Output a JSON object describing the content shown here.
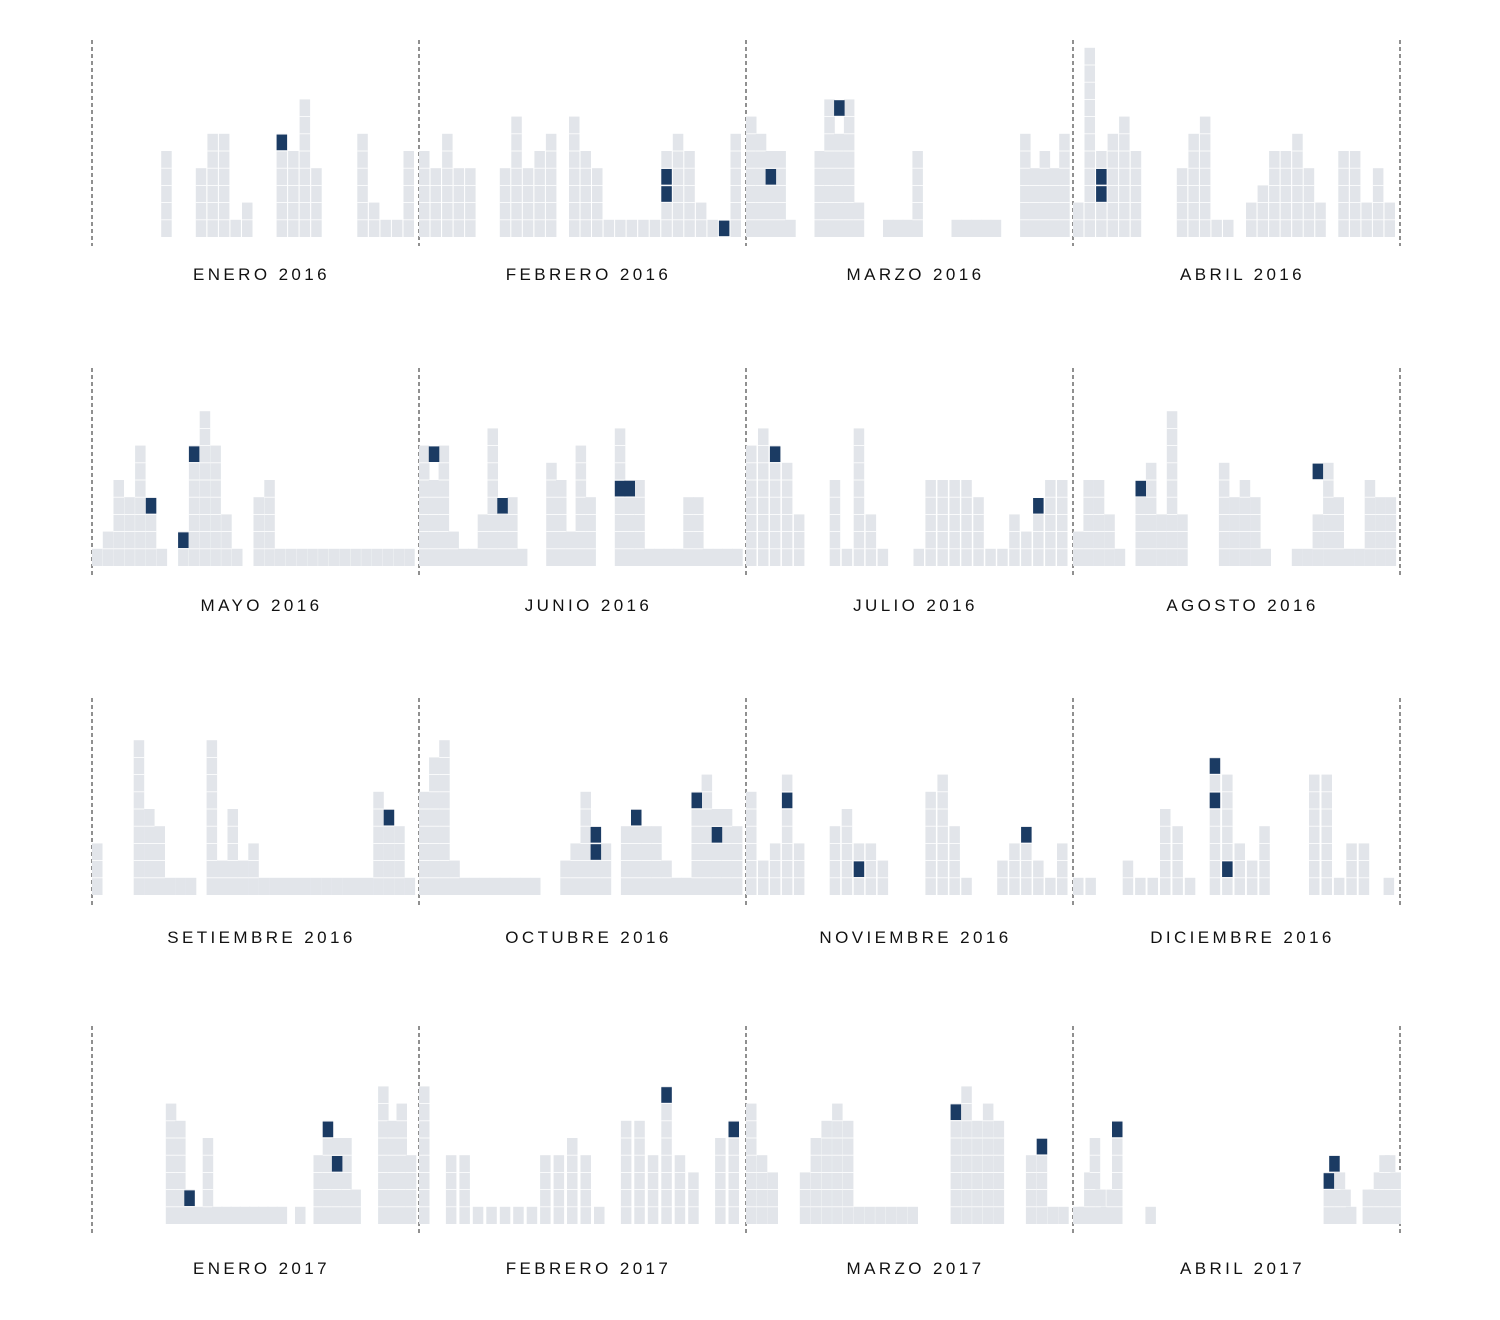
{
  "colors": {
    "bar": "#e2e5ea",
    "highlight": "#1b3b63",
    "divider": "#222222",
    "text": "#111111"
  },
  "chart_data": {
    "type": "bar",
    "title": "",
    "xlabel": "",
    "ylabel": "",
    "note": "Small-multiple daily column charts, one per month. Each column is a day, built from stacked unit cells; 'highlight' lists the unit-cell index (counted from the bottom, starting at 1) drawn in dark blue.",
    "ylim": [
      0,
      11
    ],
    "months": [
      {
        "label": "ENERO 2016",
        "values": [
          0,
          0,
          0,
          0,
          0,
          0,
          5,
          0,
          0,
          4,
          6,
          6,
          1,
          2,
          0,
          0,
          6,
          5,
          8,
          4,
          0,
          0,
          0,
          6,
          2,
          1,
          1,
          5
        ],
        "highlight": [
          [
            16,
            6
          ]
        ]
      },
      {
        "label": "FEBRERO 2016",
        "values": [
          5,
          4,
          6,
          4,
          4,
          0,
          0,
          4,
          7,
          4,
          5,
          6,
          0,
          7,
          5,
          4,
          1,
          1,
          1,
          1,
          1,
          5,
          6,
          5,
          2,
          1,
          0,
          6
        ],
        "highlight": [
          [
            21,
            3
          ],
          [
            21,
            4
          ],
          [
            26,
            1
          ]
        ]
      },
      {
        "label": "MARZO 2016",
        "values": [
          7,
          6,
          5,
          5,
          1,
          0,
          0,
          5,
          8,
          6,
          8,
          2,
          0,
          0,
          1,
          1,
          1,
          5,
          0,
          0,
          0,
          1,
          1,
          1,
          1,
          1,
          0,
          0,
          6,
          4,
          5,
          4,
          6
        ],
        "highlight": [
          [
            2,
            4
          ],
          [
            9,
            8
          ]
        ]
      },
      {
        "label": "ABRIL 2016",
        "values": [
          2,
          11,
          5,
          6,
          7,
          5,
          0,
          0,
          0,
          4,
          6,
          7,
          1,
          1,
          0,
          2,
          3,
          5,
          5,
          6,
          4,
          2,
          0,
          5,
          5,
          2,
          4,
          2
        ],
        "highlight": [
          [
            2,
            3
          ],
          [
            2,
            4
          ]
        ]
      },
      {
        "label": "MAYO 2016",
        "values": [
          1,
          2,
          5,
          4,
          7,
          4,
          1,
          0,
          2,
          7,
          9,
          7,
          3,
          1,
          0,
          4,
          5,
          1,
          1,
          1,
          1,
          1,
          1,
          1,
          1,
          1,
          1,
          1,
          1,
          1
        ],
        "highlight": [
          [
            5,
            4
          ],
          [
            8,
            2
          ],
          [
            9,
            7
          ]
        ]
      },
      {
        "label": "JUNIO 2016",
        "values": [
          7,
          5,
          7,
          2,
          1,
          1,
          3,
          8,
          3,
          4,
          1,
          0,
          0,
          6,
          5,
          2,
          7,
          4,
          0,
          0,
          8,
          5,
          5,
          1,
          1,
          1,
          1,
          4,
          4,
          1,
          1,
          1,
          1
        ],
        "highlight": [
          [
            1,
            7
          ],
          [
            8,
            4
          ],
          [
            20,
            5
          ],
          [
            21,
            5
          ]
        ]
      },
      {
        "label": "JULIO 2016",
        "values": [
          7,
          8,
          7,
          6,
          3,
          0,
          0,
          5,
          1,
          8,
          3,
          1,
          0,
          0,
          1,
          5,
          5,
          5,
          5,
          4,
          1,
          1,
          3,
          2,
          3,
          5,
          5
        ],
        "highlight": [
          [
            2,
            7
          ],
          [
            24,
            4
          ]
        ]
      },
      {
        "label": "AGOSTO 2016",
        "values": [
          2,
          5,
          5,
          3,
          1,
          0,
          4,
          6,
          3,
          9,
          3,
          0,
          0,
          0,
          6,
          4,
          5,
          4,
          1,
          0,
          0,
          1,
          1,
          3,
          6,
          4,
          1,
          1,
          5,
          4,
          4
        ],
        "highlight": [
          [
            6,
            5
          ],
          [
            23,
            6
          ]
        ]
      },
      {
        "label": "SETIEMBRE 2016",
        "values": [
          3,
          0,
          0,
          0,
          9,
          5,
          4,
          1,
          1,
          1,
          0,
          9,
          2,
          5,
          2,
          3,
          1,
          1,
          1,
          1,
          1,
          1,
          1,
          1,
          1,
          1,
          1,
          6,
          5,
          4,
          1
        ],
        "highlight": [
          [
            28,
            5
          ]
        ]
      },
      {
        "label": "OCTUBRE 2016",
        "values": [
          6,
          8,
          9,
          2,
          1,
          1,
          1,
          1,
          1,
          1,
          1,
          1,
          0,
          0,
          2,
          3,
          6,
          4,
          3,
          0,
          4,
          5,
          4,
          4,
          2,
          1,
          1,
          6,
          7,
          5,
          5,
          4
        ],
        "highlight": [
          [
            17,
            3
          ],
          [
            17,
            4
          ],
          [
            21,
            5
          ],
          [
            27,
            6
          ],
          [
            29,
            4
          ]
        ]
      },
      {
        "label": "NOVIEMBRE 2016",
        "values": [
          6,
          2,
          3,
          7,
          3,
          0,
          0,
          4,
          5,
          3,
          3,
          2,
          0,
          0,
          0,
          6,
          7,
          4,
          1,
          0,
          0,
          2,
          3,
          4,
          2,
          1,
          3
        ],
        "highlight": [
          [
            3,
            6
          ],
          [
            9,
            2
          ],
          [
            23,
            4
          ]
        ]
      },
      {
        "label": "DICIEMBRE 2016",
        "values": [
          1,
          1,
          0,
          0,
          2,
          1,
          1,
          5,
          4,
          1,
          0,
          8,
          7,
          3,
          2,
          4,
          0,
          0,
          0,
          7,
          7,
          1,
          3,
          3,
          0,
          1
        ],
        "highlight": [
          [
            11,
            6
          ],
          [
            11,
            8
          ],
          [
            12,
            2
          ]
        ]
      },
      {
        "label": "ENERO 2017",
        "values": [
          0,
          0,
          0,
          0,
          0,
          0,
          0,
          0,
          7,
          6,
          2,
          1,
          5,
          1,
          1,
          1,
          1,
          1,
          1,
          1,
          1,
          0,
          1,
          0,
          4,
          6,
          5,
          5,
          2,
          0,
          0,
          8,
          6,
          7,
          4
        ],
        "highlight": [
          [
            10,
            2
          ],
          [
            25,
            6
          ],
          [
            26,
            4
          ]
        ]
      },
      {
        "label": "FEBRERO 2017",
        "values": [
          8,
          0,
          4,
          4,
          1,
          1,
          1,
          1,
          1,
          4,
          4,
          5,
          4,
          1,
          0,
          6,
          6,
          4,
          8,
          4,
          3,
          0,
          5,
          6
        ],
        "highlight": [
          [
            18,
            8
          ],
          [
            23,
            6
          ]
        ]
      },
      {
        "label": "MARZO 2017",
        "values": [
          7,
          4,
          3,
          0,
          0,
          3,
          5,
          6,
          7,
          6,
          1,
          1,
          1,
          1,
          1,
          1,
          0,
          0,
          0,
          7,
          8,
          6,
          7,
          6,
          0,
          0,
          4,
          5,
          1,
          1
        ],
        "highlight": [
          [
            19,
            7
          ],
          [
            27,
            5
          ]
        ]
      },
      {
        "label": "ABRIL 2017",
        "values": [
          1,
          1,
          3,
          5,
          2,
          1,
          2,
          6,
          0,
          0,
          0,
          0,
          0,
          1,
          0,
          0,
          0,
          0,
          0,
          0,
          0,
          0,
          0,
          0,
          0,
          0,
          0,
          0,
          0,
          0,
          0,
          0,
          0,
          0,
          0,
          0,
          0,
          0,
          0,
          0,
          0,
          0,
          0,
          0,
          0,
          3,
          4,
          3,
          2,
          1,
          0,
          0,
          2,
          2,
          3,
          4,
          4,
          3
        ],
        "highlight": [
          [
            7,
            6
          ],
          [
            45,
            3
          ],
          [
            46,
            4
          ]
        ]
      }
    ]
  }
}
